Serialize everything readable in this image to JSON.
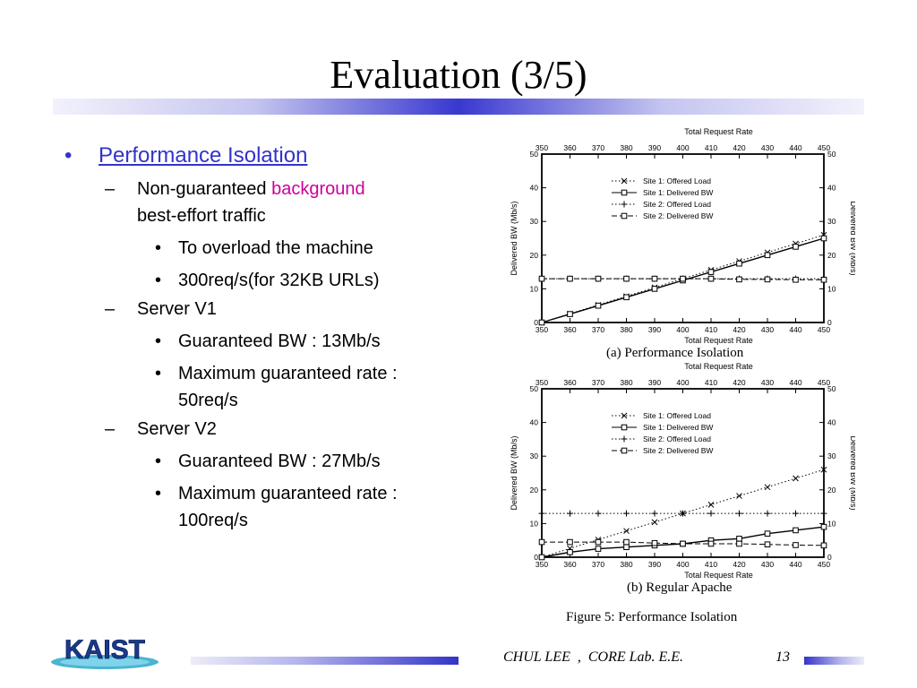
{
  "slide": {
    "title": "Evaluation (3/5)"
  },
  "bullets": {
    "b1": "Performance Isolation",
    "b1_1a": "Non-guaranteed ",
    "b1_1b": "background",
    "b1_1c": "best-effort traffic",
    "b1_1_1": "To overload the machine",
    "b1_1_2": "300req/s(for 32KB URLs)",
    "b1_2": "Server V1",
    "b1_2_1": "Guaranteed BW : 13Mb/s",
    "b1_2_2a": "Maximum guaranteed rate :",
    "b1_2_2b": "50req/s",
    "b1_3": "Server V2",
    "b1_3_1": "Guaranteed BW : 27Mb/s",
    "b1_3_2a": "Maximum guaranteed rate :",
    "b1_3_2b": "100req/s"
  },
  "figure": {
    "caption_a": "(a) Performance Isolation",
    "caption_b": "(b) Regular Apache",
    "caption": "Figure 5: Performance Isolation"
  },
  "chart_data": [
    {
      "type": "line",
      "top_axis_label": "Total Request Rate",
      "xlabel": "Total Request Rate",
      "ylabel": "Delivered BW (Mb/s)",
      "x": [
        350,
        360,
        370,
        380,
        390,
        400,
        410,
        420,
        430,
        440,
        450
      ],
      "xlim": [
        350,
        450
      ],
      "ylim": [
        0,
        50
      ],
      "yticks": [
        0,
        10,
        20,
        30,
        40,
        50
      ],
      "series": [
        {
          "name": "Site 1: Offered Load",
          "values": [
            0,
            2.6,
            5.2,
            7.8,
            10.4,
            13,
            15.6,
            18.2,
            20.8,
            23.4,
            26
          ]
        },
        {
          "name": "Site 1: Delivered BW",
          "values": [
            0,
            2.5,
            5,
            7.5,
            10,
            12.5,
            15,
            17.5,
            20,
            22.5,
            25
          ]
        },
        {
          "name": "Site 2: Offered Load",
          "values": [
            13,
            13,
            13,
            13,
            13,
            13,
            13,
            13,
            13,
            13,
            13
          ]
        },
        {
          "name": "Site 2: Delivered BW",
          "values": [
            13,
            13,
            13,
            13,
            13,
            13,
            13,
            12.8,
            12.8,
            12.7,
            12.7
          ]
        }
      ],
      "legend": "top-left"
    },
    {
      "type": "line",
      "top_axis_label": "Total Request Rate",
      "xlabel": "Total Request Rate",
      "ylabel": "Delivered BW (Mb/s)",
      "x": [
        350,
        360,
        370,
        380,
        390,
        400,
        410,
        420,
        430,
        440,
        450
      ],
      "xlim": [
        350,
        450
      ],
      "ylim": [
        0,
        50
      ],
      "yticks": [
        0,
        10,
        20,
        30,
        40,
        50
      ],
      "series": [
        {
          "name": "Site 1: Offered Load",
          "values": [
            0,
            2.6,
            5.2,
            7.8,
            10.4,
            13,
            15.6,
            18.2,
            20.8,
            23.4,
            26
          ]
        },
        {
          "name": "Site 1: Delivered BW",
          "values": [
            0,
            1.5,
            2.5,
            3,
            3.5,
            4,
            5,
            5.5,
            7,
            8,
            9
          ]
        },
        {
          "name": "Site 2: Offered Load",
          "values": [
            13,
            13,
            13,
            13,
            13,
            13,
            13,
            13,
            13,
            13,
            13
          ]
        },
        {
          "name": "Site 2: Delivered BW",
          "values": [
            4.5,
            4.5,
            4.5,
            4.5,
            4.2,
            4,
            4,
            4,
            3.8,
            3.6,
            3.5
          ]
        }
      ],
      "legend": "top-left"
    }
  ],
  "footer": {
    "text": "CHUL LEE  ,  CORE Lab. E.E.",
    "page": "13",
    "logo": "KAIST"
  }
}
